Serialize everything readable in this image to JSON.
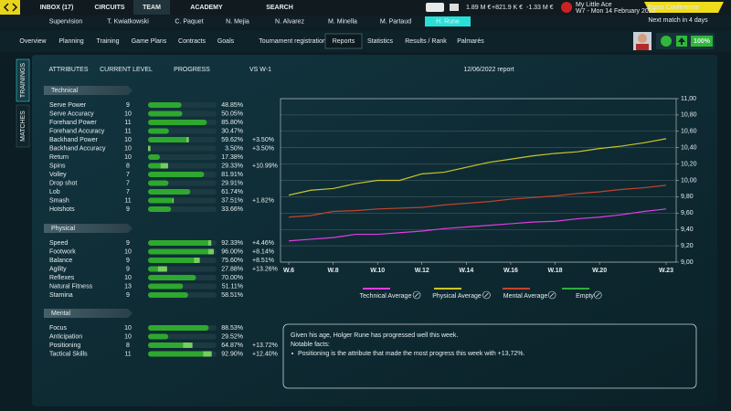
{
  "top_nav": {
    "items": [
      "INBOX (17)",
      "CIRCUITS",
      "TEAM",
      "ACADEMY",
      "SEARCH"
    ],
    "active": 2
  },
  "finance": {
    "logo": "TM",
    "balance": "1.89 M €",
    "income": "+821.9 K €",
    "expense": "-1.33 M €"
  },
  "club": {
    "name": "My Little Ace",
    "date": "W7 - Mon 14 February 2022"
  },
  "press_button": "Press Conference",
  "next_match": "Next match in 4 days",
  "staff_tabs": {
    "items": [
      "Supervision",
      "T. Kwiatkowski",
      "C. Paquet",
      "N. Mejia",
      "N. Alvarez",
      "M. Minella",
      "M. Partaud",
      "H. Rune"
    ],
    "active": 7
  },
  "sub_nav": {
    "items": [
      "Overview",
      "Planning",
      "Training",
      "Game Plans",
      "Contracts",
      "Goals",
      "Tournament registration",
      "Reports",
      "Statistics",
      "Results / Rank",
      "Palmarès"
    ],
    "active": 7
  },
  "morale": "100%",
  "side_tabs": [
    "TRAININGS",
    "MATCHES"
  ],
  "attributes": {
    "headers": [
      "ATTRIBUTES",
      "CURRENT LEVEL",
      "PROGRESS",
      "VS W-1"
    ],
    "groups": [
      {
        "name": "Technical",
        "rows": [
          {
            "name": "Serve Power",
            "level": 9,
            "progress": 48.85,
            "progress_label": "48.85%"
          },
          {
            "name": "Serve Accuracy",
            "level": 10,
            "progress": 50.05,
            "progress_label": "50.05%"
          },
          {
            "name": "Forehand Power",
            "level": 11,
            "progress": 85.8,
            "progress_label": "85.80%"
          },
          {
            "name": "Forehand Accuracy",
            "level": 11,
            "progress": 30.47,
            "progress_label": "30.47%"
          },
          {
            "name": "Backhand Power",
            "level": 10,
            "progress": 59.62,
            "progress_label": "59.62%",
            "delta": 3.5,
            "delta_label": "+3.50%"
          },
          {
            "name": "Backhand Accuracy",
            "level": 10,
            "progress": 3.5,
            "progress_label": "3.50%",
            "delta": 3.5,
            "delta_label": "+3.50%"
          },
          {
            "name": "Return",
            "level": 10,
            "progress": 17.38,
            "progress_label": "17.38%"
          },
          {
            "name": "Spins",
            "level": 8,
            "progress": 29.33,
            "progress_label": "29.33%",
            "delta": 10.99,
            "delta_label": "+10.99%"
          },
          {
            "name": "Volley",
            "level": 7,
            "progress": 81.91,
            "progress_label": "81.91%"
          },
          {
            "name": "Drop shot",
            "level": 7,
            "progress": 29.91,
            "progress_label": "29.91%"
          },
          {
            "name": "Lob",
            "level": 7,
            "progress": 61.74,
            "progress_label": "61.74%"
          },
          {
            "name": "Smash",
            "level": 11,
            "progress": 37.51,
            "progress_label": "37.51%",
            "delta": 1.82,
            "delta_label": "+1.82%"
          },
          {
            "name": "Hotshots",
            "level": 9,
            "progress": 33.66,
            "progress_label": "33.66%"
          }
        ]
      },
      {
        "name": "Physical",
        "rows": [
          {
            "name": "Speed",
            "level": 9,
            "progress": 92.33,
            "progress_label": "92.33%",
            "delta": 4.46,
            "delta_label": "+4.46%"
          },
          {
            "name": "Footwork",
            "level": 10,
            "progress": 96.0,
            "progress_label": "96.00%",
            "delta": 8.14,
            "delta_label": "+8.14%"
          },
          {
            "name": "Balance",
            "level": 9,
            "progress": 75.6,
            "progress_label": "75.60%",
            "delta": 8.51,
            "delta_label": "+8.51%"
          },
          {
            "name": "Agility",
            "level": 9,
            "progress": 27.88,
            "progress_label": "27.88%",
            "delta": 13.26,
            "delta_label": "+13.26%"
          },
          {
            "name": "Reflexes",
            "level": 10,
            "progress": 70.0,
            "progress_label": "70.00%"
          },
          {
            "name": "Natural Fitness",
            "level": 13,
            "progress": 51.11,
            "progress_label": "51.11%"
          },
          {
            "name": "Stamina",
            "level": 9,
            "progress": 58.51,
            "progress_label": "58.51%"
          }
        ]
      },
      {
        "name": "Mental",
        "rows": [
          {
            "name": "Focus",
            "level": 10,
            "progress": 88.53,
            "progress_label": "88.53%"
          },
          {
            "name": "Anticipation",
            "level": 10,
            "progress": 29.52,
            "progress_label": "29.52%"
          },
          {
            "name": "Positioning",
            "level": 8,
            "progress": 64.87,
            "progress_label": "64.87%",
            "delta": 13.72,
            "delta_label": "+13.72%"
          },
          {
            "name": "Tactical Skills",
            "level": 11,
            "progress": 92.9,
            "progress_label": "92.90%",
            "delta": 12.4,
            "delta_label": "+12.40%"
          }
        ]
      }
    ]
  },
  "chart_data": {
    "type": "line",
    "title": "12/06/2022 report",
    "categories": [
      "W.6",
      null,
      "W.8",
      null,
      "W.10",
      null,
      "W.12",
      null,
      "W.14",
      null,
      "W.16",
      null,
      "W.18",
      null,
      "W.20",
      null,
      null,
      "W.23"
    ],
    "series": [
      {
        "name": "Technical Average",
        "color": "#e03de0",
        "values": [
          9.26,
          9.28,
          9.3,
          9.34,
          9.34,
          9.36,
          9.38,
          9.41,
          9.43,
          9.45,
          9.47,
          9.49,
          9.5,
          9.53,
          9.55,
          9.58,
          9.62,
          9.65
        ]
      },
      {
        "name": "Physical Average",
        "color": "#c9c52a",
        "values": [
          9.82,
          9.88,
          9.9,
          9.96,
          10.0,
          10.0,
          10.08,
          10.1,
          10.16,
          10.22,
          10.26,
          10.3,
          10.33,
          10.35,
          10.39,
          10.42,
          10.46,
          10.51
        ]
      },
      {
        "name": "Mental Average",
        "color": "#c4432c",
        "values": [
          9.55,
          9.57,
          9.62,
          9.63,
          9.65,
          9.66,
          9.67,
          9.7,
          9.72,
          9.74,
          9.77,
          9.79,
          9.81,
          9.84,
          9.86,
          9.89,
          9.91,
          9.94
        ]
      },
      {
        "name": "Empty",
        "color": "#2fae3a",
        "values": [
          null,
          null,
          null,
          null,
          null,
          null,
          null,
          null,
          null,
          null,
          null,
          null,
          null,
          null,
          null,
          null,
          null,
          null
        ]
      }
    ],
    "ylim": [
      9,
      11
    ],
    "yticks": [
      {
        "value": 9,
        "label": "9,00"
      },
      {
        "value": 9.2,
        "label": "9,20"
      },
      {
        "value": 9.4,
        "label": "9,40"
      },
      {
        "value": 9.6,
        "label": "9,60"
      },
      {
        "value": 9.8,
        "label": "9,80"
      },
      {
        "value": 10,
        "label": "10,00"
      },
      {
        "value": 10.2,
        "label": "10,20"
      },
      {
        "value": 10.4,
        "label": "10,40"
      },
      {
        "value": 10.6,
        "label": "10,60"
      },
      {
        "value": 10.8,
        "label": "10,80"
      },
      {
        "value": 11,
        "label": "11,00"
      }
    ],
    "grid": true,
    "y_axis_side": "right"
  },
  "report_box": {
    "lines": [
      "Given his age, Holger Rune has progressed well this week.",
      "Notable facts:"
    ],
    "bullet": "Positioning is the attribute that made the most progress this week with +13,72%."
  }
}
